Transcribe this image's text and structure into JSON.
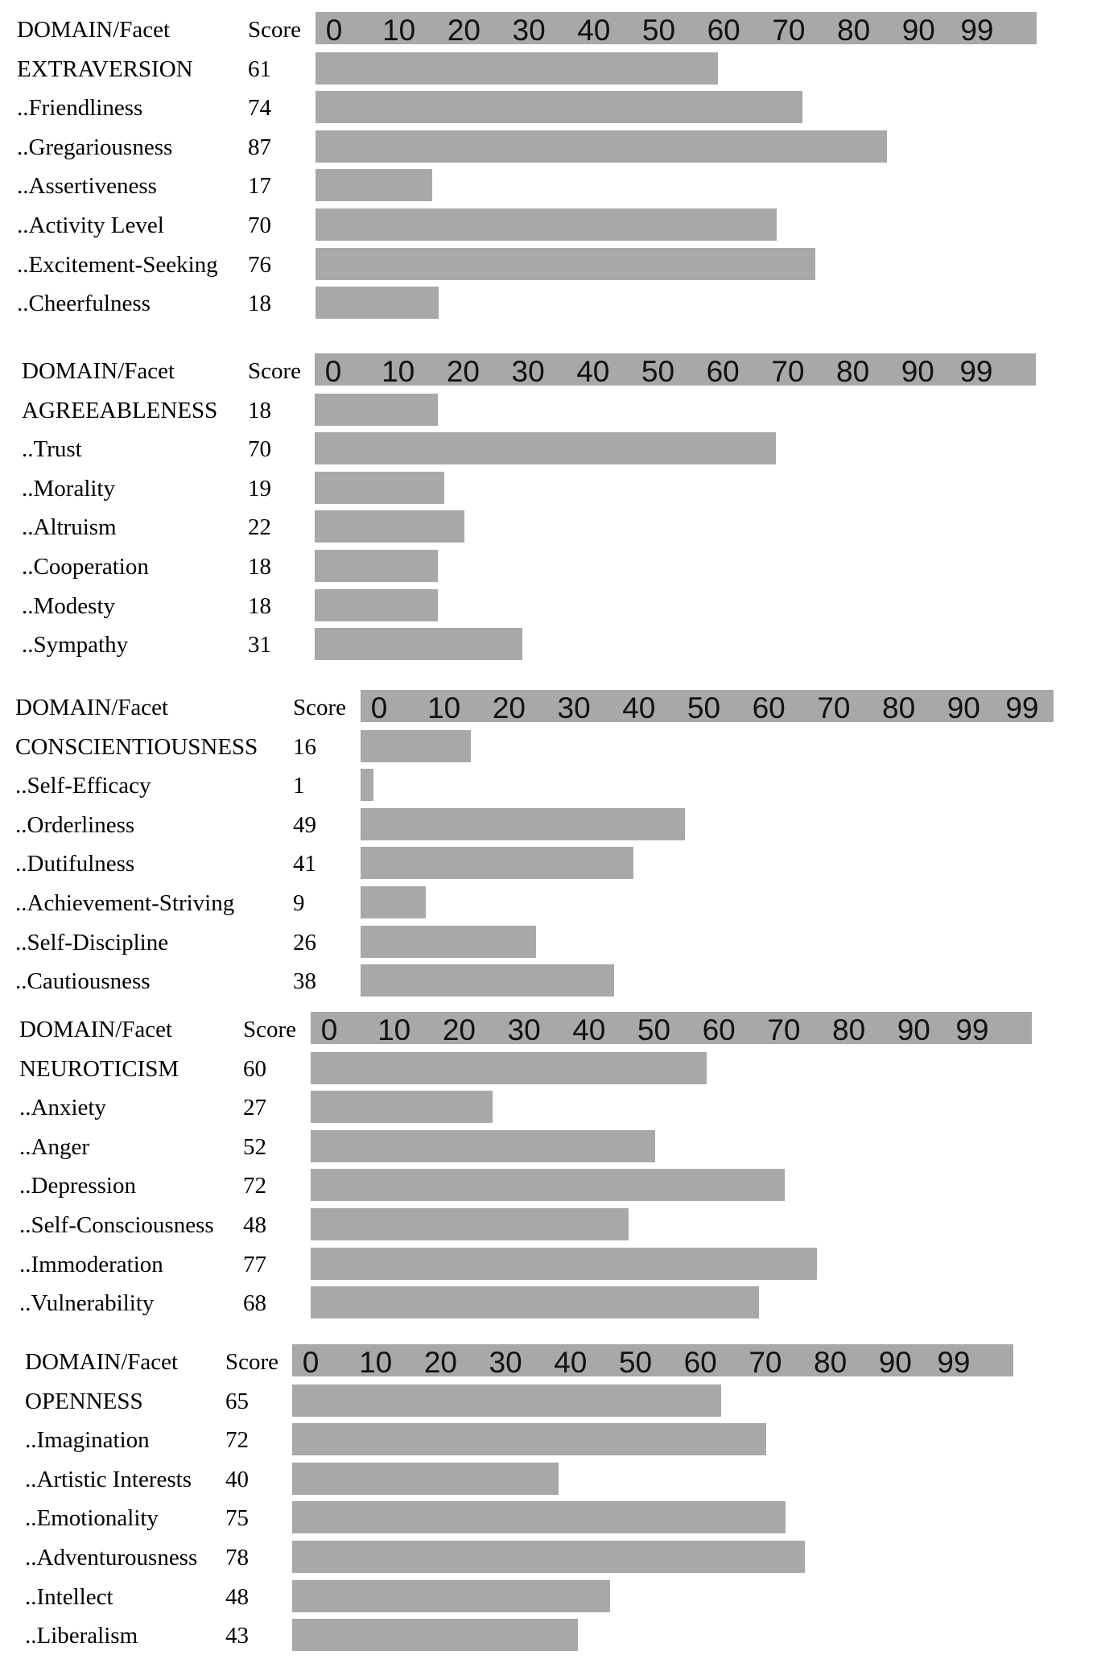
{
  "chart_data": [
    {
      "type": "bar",
      "header": {
        "label": "DOMAIN/Facet",
        "score_label": "Score"
      },
      "ticks": [
        "0",
        "10",
        "20",
        "30",
        "40",
        "50",
        "60",
        "70",
        "80",
        "90",
        "99"
      ],
      "xlim": [
        0,
        99
      ],
      "rows": [
        {
          "label": "EXTRAVERSION",
          "score": "61",
          "value": 61
        },
        {
          "label": "..Friendliness",
          "score": "74",
          "value": 74
        },
        {
          "label": "..Gregariousness",
          "score": "87",
          "value": 87
        },
        {
          "label": "..Assertiveness",
          "score": "17",
          "value": 17
        },
        {
          "label": "..Activity Level",
          "score": "70",
          "value": 70
        },
        {
          "label": "..Excitement-Seeking",
          "score": "76",
          "value": 76
        },
        {
          "label": "..Cheerfulness",
          "score": "18",
          "value": 18
        }
      ]
    },
    {
      "type": "bar",
      "header": {
        "label": "DOMAIN/Facet",
        "score_label": "Score"
      },
      "ticks": [
        "0",
        "10",
        "20",
        "30",
        "40",
        "50",
        "60",
        "70",
        "80",
        "90",
        "99"
      ],
      "xlim": [
        0,
        99
      ],
      "rows": [
        {
          "label": "AGREEABLENESS",
          "score": "18",
          "value": 18
        },
        {
          "label": "..Trust",
          "score": "70",
          "value": 70
        },
        {
          "label": "..Morality",
          "score": "19",
          "value": 19
        },
        {
          "label": "..Altruism",
          "score": "22",
          "value": 22
        },
        {
          "label": "..Cooperation",
          "score": "18",
          "value": 18
        },
        {
          "label": "..Modesty",
          "score": "18",
          "value": 18
        },
        {
          "label": "..Sympathy",
          "score": "31",
          "value": 31
        }
      ]
    },
    {
      "type": "bar",
      "header": {
        "label": "DOMAIN/Facet",
        "score_label": "Score"
      },
      "ticks": [
        "0",
        "10",
        "20",
        "30",
        "40",
        "50",
        "60",
        "70",
        "80",
        "90",
        "99"
      ],
      "xlim": [
        0,
        99
      ],
      "rows": [
        {
          "label": "CONSCIENTIOUSNESS",
          "score": "16",
          "value": 16
        },
        {
          "label": "..Self-Efficacy",
          "score": "1",
          "value": 1
        },
        {
          "label": "..Orderliness",
          "score": "49",
          "value": 49
        },
        {
          "label": "..Dutifulness",
          "score": "41",
          "value": 41
        },
        {
          "label": "..Achievement-Striving",
          "score": "9",
          "value": 9
        },
        {
          "label": "..Self-Discipline",
          "score": "26",
          "value": 26
        },
        {
          "label": "..Cautiousness",
          "score": "38",
          "value": 38
        }
      ]
    },
    {
      "type": "bar",
      "header": {
        "label": "DOMAIN/Facet",
        "score_label": "Score"
      },
      "ticks": [
        "0",
        "10",
        "20",
        "30",
        "40",
        "50",
        "60",
        "70",
        "80",
        "90",
        "99"
      ],
      "xlim": [
        0,
        99
      ],
      "rows": [
        {
          "label": "NEUROTICISM",
          "score": "60",
          "value": 60
        },
        {
          "label": "..Anxiety",
          "score": "27",
          "value": 27
        },
        {
          "label": "..Anger",
          "score": "52",
          "value": 52
        },
        {
          "label": "..Depression",
          "score": "72",
          "value": 72
        },
        {
          "label": "..Self-Consciousness",
          "score": "48",
          "value": 48
        },
        {
          "label": "..Immoderation",
          "score": "77",
          "value": 77
        },
        {
          "label": "..Vulnerability",
          "score": "68",
          "value": 68
        }
      ]
    },
    {
      "type": "bar",
      "header": {
        "label": "DOMAIN/Facet",
        "score_label": "Score"
      },
      "ticks": [
        "0",
        "10",
        "20",
        "30",
        "40",
        "50",
        "60",
        "70",
        "80",
        "90",
        "99"
      ],
      "xlim": [
        0,
        99
      ],
      "rows": [
        {
          "label": "OPENNESS",
          "score": "65",
          "value": 65
        },
        {
          "label": "..Imagination",
          "score": "72",
          "value": 72
        },
        {
          "label": "..Artistic Interests",
          "score": "40",
          "value": 40
        },
        {
          "label": "..Emotionality",
          "score": "75",
          "value": 75
        },
        {
          "label": "..Adventurousness",
          "score": "78",
          "value": 78
        },
        {
          "label": "..Intellect",
          "score": "48",
          "value": 48
        },
        {
          "label": "..Liberalism",
          "score": "43",
          "value": 43
        }
      ]
    }
  ]
}
